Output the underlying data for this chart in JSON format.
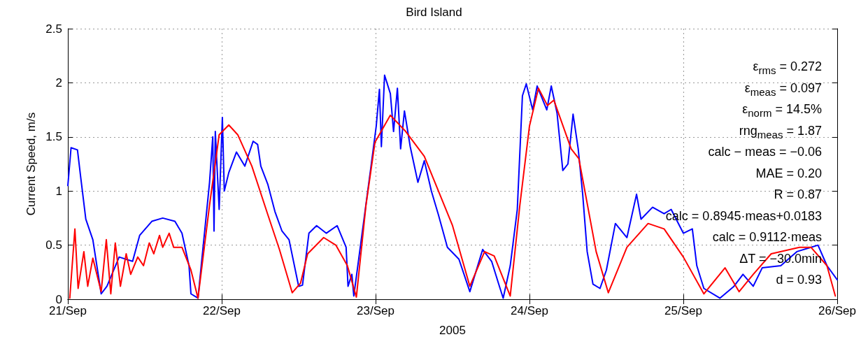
{
  "chart_data": {
    "type": "line",
    "title": "Bird Island",
    "xlabel": "2005",
    "ylabel": "Current Speed, m/s",
    "xlim": [
      "2005-09-21",
      "2005-09-26"
    ],
    "xticks": [
      {
        "value": "2005-09-21",
        "label": "21/Sep"
      },
      {
        "value": "2005-09-22",
        "label": "22/Sep"
      },
      {
        "value": "2005-09-23",
        "label": "23/Sep"
      },
      {
        "value": "2005-09-24",
        "label": "24/Sep"
      },
      {
        "value": "2005-09-25",
        "label": "25/Sep"
      },
      {
        "value": "2005-09-26",
        "label": "26/Sep"
      }
    ],
    "ylim": [
      0,
      2.5
    ],
    "yticks": [
      0,
      0.5,
      1,
      1.5,
      2,
      2.5
    ],
    "grid": true,
    "marker": "none",
    "line_style": "solid",
    "annotations": [
      "ε$_{rms}$ = 0.272",
      "ε$_{meas}$ = 0.097",
      "ε$_{norm}$ = 14.5%",
      "rng$_{meas}$ = 1.87",
      "calc − meas = −0.06",
      "MAE = 0.20",
      "R = 0.87",
      "calc = 0.8945·meas+0.0183",
      "calc = 0.9112·meas",
      "ΔT = −30.0min",
      "d = 0.93"
    ],
    "series": [
      {
        "color": "#0000ff",
        "x": [
          "2005-09-21T00:00",
          "2005-09-21T00:30",
          "2005-09-21T01:30",
          "2005-09-21T02:00",
          "2005-09-21T02:48",
          "2005-09-21T03:54",
          "2005-09-21T05:12",
          "2005-09-21T06:06",
          "2005-09-21T08:00",
          "2005-09-21T10:06",
          "2005-09-21T11:12",
          "2005-09-21T13:06",
          "2005-09-21T14:48",
          "2005-09-21T16:42",
          "2005-09-21T17:48",
          "2005-09-21T18:54",
          "2005-09-21T19:12",
          "2005-09-21T20:18",
          "2005-09-21T22:06",
          "2005-09-21T22:36",
          "2005-09-21T22:48",
          "2005-09-21T23:00",
          "2005-09-21T23:36",
          "2005-09-22T00:06",
          "2005-09-22T00:24",
          "2005-09-22T01:06",
          "2005-09-22T02:18",
          "2005-09-22T03:36",
          "2005-09-22T04:54",
          "2005-09-22T05:36",
          "2005-09-22T06:06",
          "2005-09-22T07:12",
          "2005-09-22T08:18",
          "2005-09-22T09:24",
          "2005-09-22T10:30",
          "2005-09-22T12:00",
          "2005-09-22T12:36",
          "2005-09-22T13:36",
          "2005-09-22T14:48",
          "2005-09-22T16:18",
          "2005-09-22T18:00",
          "2005-09-22T19:24",
          "2005-09-22T19:42",
          "2005-09-22T20:18",
          "2005-09-22T20:36",
          "2005-09-22T23:12",
          "2005-09-23T00:06",
          "2005-09-23T00:36",
          "2005-09-23T00:54",
          "2005-09-23T01:24",
          "2005-09-23T02:18",
          "2005-09-23T02:48",
          "2005-09-23T03:24",
          "2005-09-23T03:54",
          "2005-09-23T04:30",
          "2005-09-23T05:24",
          "2005-09-23T06:36",
          "2005-09-23T07:36",
          "2005-09-23T08:42",
          "2005-09-23T09:48",
          "2005-09-23T11:12",
          "2005-09-23T13:00",
          "2005-09-23T14:42",
          "2005-09-23T16:42",
          "2005-09-23T18:06",
          "2005-09-23T19:12",
          "2005-09-23T19:54",
          "2005-09-23T21:00",
          "2005-09-23T22:06",
          "2005-09-23T22:54",
          "2005-09-23T23:30",
          "2005-09-24T00:30",
          "2005-09-24T01:12",
          "2005-09-24T02:42",
          "2005-09-24T03:24",
          "2005-09-24T04:18",
          "2005-09-24T05:12",
          "2005-09-24T06:00",
          "2005-09-24T06:48",
          "2005-09-24T07:36",
          "2005-09-24T08:18",
          "2005-09-24T09:00",
          "2005-09-24T09:54",
          "2005-09-24T11:00",
          "2005-09-24T12:00",
          "2005-09-24T13:24",
          "2005-09-24T15:12",
          "2005-09-24T16:42",
          "2005-09-24T17:24",
          "2005-09-24T19:12",
          "2005-09-24T21:00",
          "2005-09-24T22:06",
          "2005-09-25T00:00",
          "2005-09-25T01:24",
          "2005-09-25T02:06",
          "2005-09-25T03:12",
          "2005-09-25T05:42",
          "2005-09-25T07:54",
          "2005-09-25T09:18",
          "2005-09-25T10:54",
          "2005-09-25T12:18",
          "2005-09-25T15:12",
          "2005-09-25T17:42",
          "2005-09-25T19:54",
          "2005-09-25T21:00",
          "2005-09-25T22:24",
          "2005-09-26T00:00"
        ],
        "values": [
          1.05,
          1.4,
          1.38,
          1.13,
          0.74,
          0.55,
          0.05,
          0.12,
          0.39,
          0.35,
          0.59,
          0.72,
          0.75,
          0.72,
          0.61,
          0.31,
          0.05,
          0.01,
          1.08,
          1.5,
          0.63,
          1.55,
          0.83,
          1.68,
          1.0,
          1.17,
          1.36,
          1.23,
          1.46,
          1.43,
          1.23,
          1.06,
          0.81,
          0.63,
          0.55,
          0.12,
          0.13,
          0.61,
          0.68,
          0.61,
          0.68,
          0.48,
          0.12,
          0.23,
          0.03,
          1.19,
          1.6,
          1.94,
          1.41,
          2.07,
          1.9,
          1.55,
          1.95,
          1.39,
          1.74,
          1.41,
          1.08,
          1.28,
          1.0,
          0.78,
          0.48,
          0.37,
          0.07,
          0.46,
          0.35,
          0.14,
          0.01,
          0.31,
          0.83,
          1.88,
          1.99,
          1.75,
          1.97,
          1.75,
          1.97,
          1.72,
          1.19,
          1.25,
          1.71,
          1.39,
          0.97,
          0.44,
          0.14,
          0.1,
          0.27,
          0.7,
          0.57,
          0.97,
          0.74,
          0.85,
          0.79,
          0.83,
          0.61,
          0.65,
          0.31,
          0.1,
          0.01,
          0.12,
          0.23,
          0.12,
          0.29,
          0.31,
          0.44,
          0.48,
          0.5,
          0.31,
          0.18
        ]
      },
      {
        "color": "#ff0000",
        "x": [
          "2005-09-21T00:18",
          "2005-09-21T01:06",
          "2005-09-21T01:36",
          "2005-09-21T02:30",
          "2005-09-21T03:06",
          "2005-09-21T03:54",
          "2005-09-21T05:12",
          "2005-09-21T06:00",
          "2005-09-21T06:42",
          "2005-09-21T07:24",
          "2005-09-21T08:12",
          "2005-09-21T09:06",
          "2005-09-21T09:48",
          "2005-09-21T10:54",
          "2005-09-21T11:48",
          "2005-09-21T12:42",
          "2005-09-21T13:24",
          "2005-09-21T14:18",
          "2005-09-21T14:48",
          "2005-09-21T15:48",
          "2005-09-21T16:30",
          "2005-09-21T17:48",
          "2005-09-21T19:12",
          "2005-09-21T20:18",
          "2005-09-21T22:06",
          "2005-09-21T23:36",
          "2005-09-22T01:06",
          "2005-09-22T02:30",
          "2005-09-22T04:42",
          "2005-09-22T07:12",
          "2005-09-22T09:00",
          "2005-09-22T11:00",
          "2005-09-22T12:18",
          "2005-09-22T13:24",
          "2005-09-22T15:54",
          "2005-09-22T17:48",
          "2005-09-22T19:36",
          "2005-09-22T21:00",
          "2005-09-22T22:30",
          "2005-09-22T23:54",
          "2005-09-23T02:18",
          "2005-09-23T04:42",
          "2005-09-23T07:36",
          "2005-09-23T12:00",
          "2005-09-23T14:42",
          "2005-09-23T17:00",
          "2005-09-23T18:30",
          "2005-09-23T21:00",
          "2005-09-23T22:30",
          "2005-09-24T00:00",
          "2005-09-24T01:24",
          "2005-09-24T02:48",
          "2005-09-24T03:48",
          "2005-09-24T06:30",
          "2005-09-24T07:42",
          "2005-09-24T10:24",
          "2005-09-24T12:18",
          "2005-09-24T15:12",
          "2005-09-24T18:30",
          "2005-09-24T21:00",
          "2005-09-25T00:00",
          "2005-09-25T03:12",
          "2005-09-25T06:30",
          "2005-09-25T08:42",
          "2005-09-25T10:54",
          "2005-09-25T13:42",
          "2005-09-25T18:06",
          "2005-09-25T19:54",
          "2005-09-25T22:24",
          "2005-09-25T23:42"
        ],
        "values": [
          0.01,
          0.65,
          0.1,
          0.44,
          0.12,
          0.38,
          0.07,
          0.55,
          0.05,
          0.52,
          0.12,
          0.42,
          0.23,
          0.39,
          0.31,
          0.52,
          0.42,
          0.59,
          0.48,
          0.61,
          0.48,
          0.48,
          0.27,
          0.01,
          0.87,
          1.52,
          1.61,
          1.52,
          1.23,
          0.78,
          0.46,
          0.06,
          0.15,
          0.42,
          0.57,
          0.5,
          0.31,
          0.02,
          0.87,
          1.45,
          1.7,
          1.55,
          1.32,
          0.68,
          0.12,
          0.44,
          0.4,
          0.03,
          0.87,
          1.6,
          1.95,
          1.79,
          1.84,
          1.39,
          1.3,
          0.44,
          0.06,
          0.48,
          0.7,
          0.65,
          0.39,
          0.05,
          0.29,
          0.07,
          0.23,
          0.42,
          0.48,
          0.48,
          0.31,
          0.03
        ]
      }
    ]
  }
}
